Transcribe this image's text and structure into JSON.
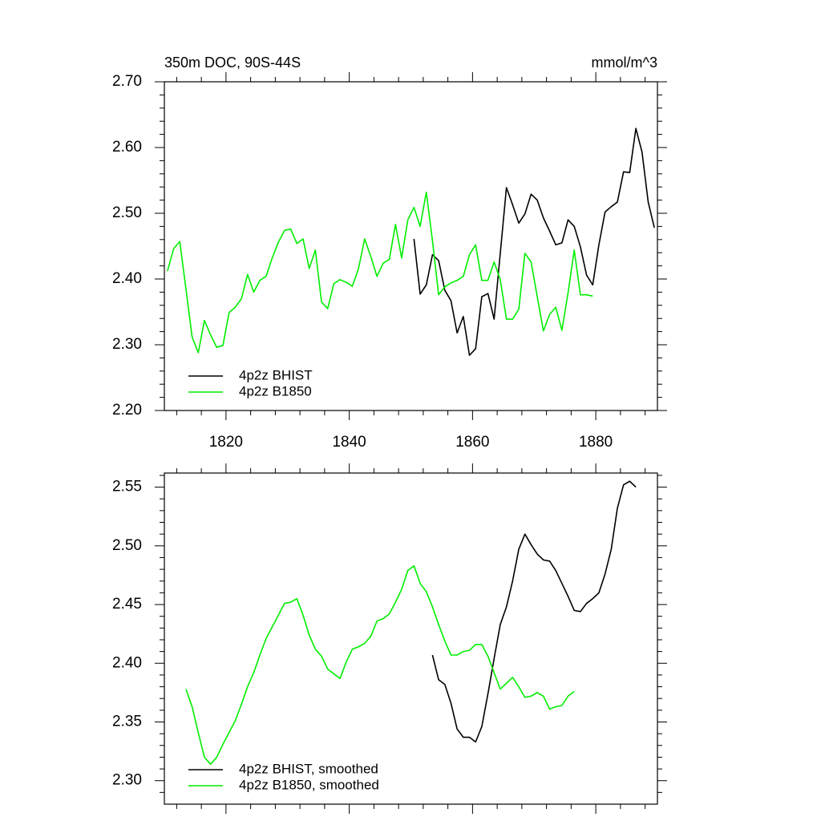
{
  "chart_data": [
    {
      "type": "line",
      "title": "350m DOC, 90S-44S",
      "units": "mmol/m^3",
      "xlim": [
        1810,
        1890
      ],
      "xticks": [
        1820,
        1840,
        1860,
        1880
      ],
      "xminorticks": [
        1812,
        1816,
        1824,
        1828,
        1832,
        1836,
        1844,
        1848,
        1852,
        1856,
        1864,
        1868,
        1872,
        1876,
        1884,
        1888
      ],
      "ylim": [
        2.2,
        2.7
      ],
      "yticks": [
        {
          "value": 2.2,
          "label": "2.20"
        },
        {
          "value": 2.3,
          "label": "2.30"
        },
        {
          "value": 2.4,
          "label": "2.40"
        },
        {
          "value": 2.5,
          "label": "2.50"
        },
        {
          "value": 2.6,
          "label": "2.60"
        },
        {
          "value": 2.7,
          "label": "2.70"
        }
      ],
      "yminorticks": [
        2.22,
        2.24,
        2.26,
        2.28,
        2.32,
        2.34,
        2.36,
        2.38,
        2.42,
        2.44,
        2.46,
        2.48,
        2.52,
        2.54,
        2.56,
        2.58,
        2.62,
        2.64,
        2.66,
        2.68
      ],
      "xtick_labels": true,
      "legend": "lower left",
      "series": [
        {
          "name": "4p2z BHIST",
          "color": "#000000",
          "x": [
            1850.5,
            1851.5,
            1852.5,
            1853.5,
            1854.5,
            1855.5,
            1856.5,
            1857.5,
            1858.5,
            1859.5,
            1860.5,
            1861.5,
            1862.5,
            1863.5,
            1864.5,
            1865.5,
            1866.5,
            1867.5,
            1868.5,
            1869.5,
            1870.5,
            1871.5,
            1872.5,
            1873.5,
            1874.5,
            1875.5,
            1876.5,
            1877.5,
            1878.5,
            1879.5,
            1880.5,
            1881.5,
            1882.5,
            1883.5,
            1884.5,
            1885.5,
            1886.5,
            1887.5,
            1888.5,
            1889.5
          ],
          "values": [
            2.461,
            2.377,
            2.391,
            2.437,
            2.428,
            2.383,
            2.367,
            2.318,
            2.343,
            2.284,
            2.294,
            2.373,
            2.378,
            2.339,
            2.439,
            2.539,
            2.513,
            2.485,
            2.499,
            2.529,
            2.52,
            2.493,
            2.473,
            2.452,
            2.455,
            2.49,
            2.48,
            2.449,
            2.406,
            2.391,
            2.452,
            2.502,
            2.51,
            2.517,
            2.563,
            2.562,
            2.629,
            2.593,
            2.517,
            2.478
          ]
        },
        {
          "name": "4p2z B1850",
          "color": "#00ee00",
          "x": [
            1810.5,
            1811.5,
            1812.5,
            1813.5,
            1814.5,
            1815.5,
            1816.5,
            1817.5,
            1818.5,
            1819.5,
            1820.5,
            1821.5,
            1822.5,
            1823.5,
            1824.5,
            1825.5,
            1826.5,
            1827.5,
            1828.5,
            1829.5,
            1830.5,
            1831.5,
            1832.5,
            1833.5,
            1834.5,
            1835.5,
            1836.5,
            1837.5,
            1838.5,
            1839.5,
            1840.5,
            1841.5,
            1842.5,
            1843.5,
            1844.5,
            1845.5,
            1846.5,
            1847.5,
            1848.5,
            1849.5,
            1850.5,
            1851.5,
            1852.5,
            1853.5,
            1854.5,
            1855.5,
            1856.5,
            1857.5,
            1858.5,
            1859.5,
            1860.5,
            1861.5,
            1862.5,
            1863.5,
            1864.5,
            1865.5,
            1866.5,
            1867.5,
            1868.5,
            1869.5,
            1870.5,
            1871.5,
            1872.5,
            1873.5,
            1874.5,
            1875.5,
            1876.5,
            1877.5,
            1878.5,
            1879.5
          ],
          "values": [
            2.412,
            2.446,
            2.457,
            2.385,
            2.312,
            2.288,
            2.337,
            2.315,
            2.296,
            2.299,
            2.349,
            2.357,
            2.37,
            2.407,
            2.38,
            2.398,
            2.404,
            2.432,
            2.456,
            2.474,
            2.476,
            2.454,
            2.461,
            2.416,
            2.444,
            2.365,
            2.355,
            2.393,
            2.399,
            2.395,
            2.389,
            2.416,
            2.461,
            2.434,
            2.404,
            2.424,
            2.43,
            2.483,
            2.432,
            2.49,
            2.509,
            2.48,
            2.532,
            2.458,
            2.376,
            2.388,
            2.394,
            2.398,
            2.404,
            2.437,
            2.452,
            2.398,
            2.398,
            2.426,
            2.399,
            2.339,
            2.339,
            2.354,
            2.439,
            2.426,
            2.373,
            2.321,
            2.346,
            2.357,
            2.322,
            2.379,
            2.444,
            2.376,
            2.376,
            2.374
          ]
        }
      ]
    },
    {
      "type": "line",
      "xlim": [
        1810,
        1890
      ],
      "xticks": [
        1820,
        1840,
        1860,
        1880
      ],
      "xminorticks": [
        1812,
        1816,
        1824,
        1828,
        1832,
        1836,
        1844,
        1848,
        1852,
        1856,
        1864,
        1868,
        1872,
        1876,
        1884,
        1888
      ],
      "ylim": [
        2.28,
        2.562
      ],
      "yticks": [
        {
          "value": 2.3,
          "label": "2.30"
        },
        2.35,
        {
          "value": 2.4,
          "label": "2.40"
        },
        2.45,
        {
          "value": 2.5,
          "label": "2.50"
        },
        2.55
      ],
      "yminorticks": [
        2.29,
        2.31,
        2.32,
        2.33,
        2.34,
        2.36,
        2.37,
        2.38,
        2.39,
        2.41,
        2.42,
        2.43,
        2.44,
        2.46,
        2.47,
        2.48,
        2.49,
        2.51,
        2.52,
        2.53,
        2.54,
        2.56
      ],
      "xtick_labels": false,
      "legend": "lower left",
      "series": [
        {
          "name": "4p2z BHIST, smoothed",
          "color": "#000000",
          "x": [
            1853.5,
            1854.5,
            1855.5,
            1856.5,
            1857.5,
            1858.5,
            1859.5,
            1860.5,
            1861.5,
            1862.5,
            1863.5,
            1864.5,
            1865.5,
            1866.5,
            1867.5,
            1868.5,
            1869.5,
            1870.5,
            1871.5,
            1872.5,
            1873.5,
            1874.5,
            1875.5,
            1876.5,
            1877.5,
            1878.5,
            1879.5,
            1880.5,
            1881.5,
            1882.5,
            1883.5,
            1884.5,
            1885.5,
            1886.5
          ],
          "values": [
            2.407,
            2.386,
            2.382,
            2.366,
            2.344,
            2.337,
            2.337,
            2.333,
            2.346,
            2.374,
            2.404,
            2.433,
            2.448,
            2.47,
            2.497,
            2.51,
            2.501,
            2.493,
            2.488,
            2.487,
            2.479,
            2.468,
            2.457,
            2.445,
            2.444,
            2.451,
            2.455,
            2.46,
            2.476,
            2.497,
            2.532,
            2.552,
            2.555,
            2.55
          ]
        },
        {
          "name": "4p2z B1850, smoothed",
          "color": "#00ee00",
          "x": [
            1813.5,
            1814.5,
            1815.5,
            1816.5,
            1817.5,
            1818.5,
            1819.5,
            1820.5,
            1821.5,
            1822.5,
            1823.5,
            1824.5,
            1825.5,
            1826.5,
            1827.5,
            1828.5,
            1829.5,
            1830.5,
            1831.5,
            1832.5,
            1833.5,
            1834.5,
            1835.5,
            1836.5,
            1837.5,
            1838.5,
            1839.5,
            1840.5,
            1841.5,
            1842.5,
            1843.5,
            1844.5,
            1845.5,
            1846.5,
            1847.5,
            1848.5,
            1849.5,
            1850.5,
            1851.5,
            1852.5,
            1853.5,
            1854.5,
            1855.5,
            1856.5,
            1857.5,
            1858.5,
            1859.5,
            1860.5,
            1861.5,
            1862.5,
            1863.5,
            1864.5,
            1865.5,
            1866.5,
            1867.5,
            1868.5,
            1869.5,
            1870.5,
            1871.5,
            1872.5,
            1873.5,
            1874.5,
            1875.5,
            1876.5
          ],
          "values": [
            2.378,
            2.363,
            2.341,
            2.32,
            2.314,
            2.32,
            2.331,
            2.341,
            2.351,
            2.365,
            2.38,
            2.392,
            2.407,
            2.421,
            2.431,
            2.441,
            2.451,
            2.452,
            2.455,
            2.441,
            2.424,
            2.412,
            2.406,
            2.395,
            2.391,
            2.387,
            2.401,
            2.412,
            2.414,
            2.417,
            2.423,
            2.436,
            2.438,
            2.442,
            2.452,
            2.463,
            2.479,
            2.483,
            2.468,
            2.461,
            2.448,
            2.433,
            2.419,
            2.407,
            2.407,
            2.41,
            2.411,
            2.416,
            2.416,
            2.406,
            2.392,
            2.378,
            2.383,
            2.388,
            2.38,
            2.371,
            2.372,
            2.375,
            2.372,
            2.361,
            2.363,
            2.364,
            2.372,
            2.376
          ]
        }
      ]
    }
  ]
}
